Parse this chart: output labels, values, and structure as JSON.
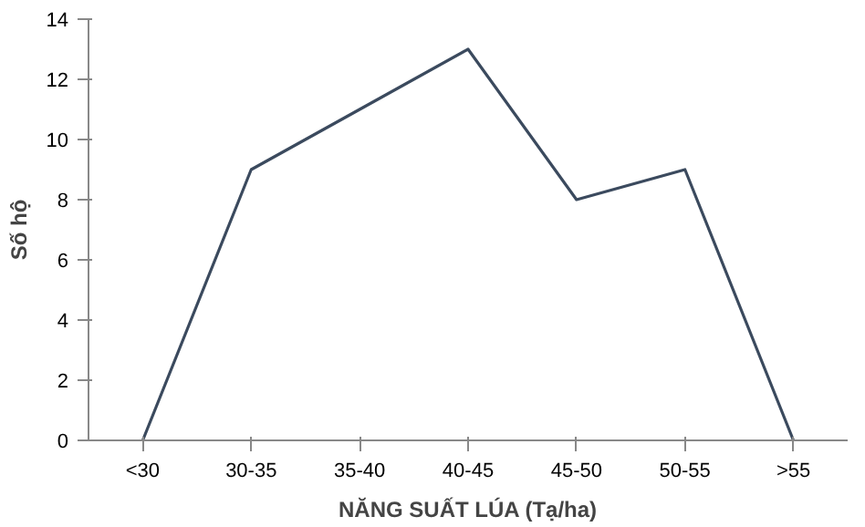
{
  "chart_data": {
    "type": "line",
    "xlabel": "NĂNG SUẤT LÚA (Tạ/ha)",
    "ylabel": "Số hộ",
    "categories": [
      "<30",
      "30-35",
      "35-40",
      "40-45",
      "45-50",
      "50-55",
      ">55"
    ],
    "series": [
      {
        "color": "#3b4a5e",
        "values": [
          0,
          9,
          11,
          13,
          8,
          9,
          0
        ]
      }
    ],
    "ylim": [
      0,
      14
    ],
    "yticks": [
      0,
      2,
      4,
      6,
      8,
      10,
      12,
      14
    ],
    "grid": false,
    "marker": "none",
    "line_style": "solid"
  }
}
